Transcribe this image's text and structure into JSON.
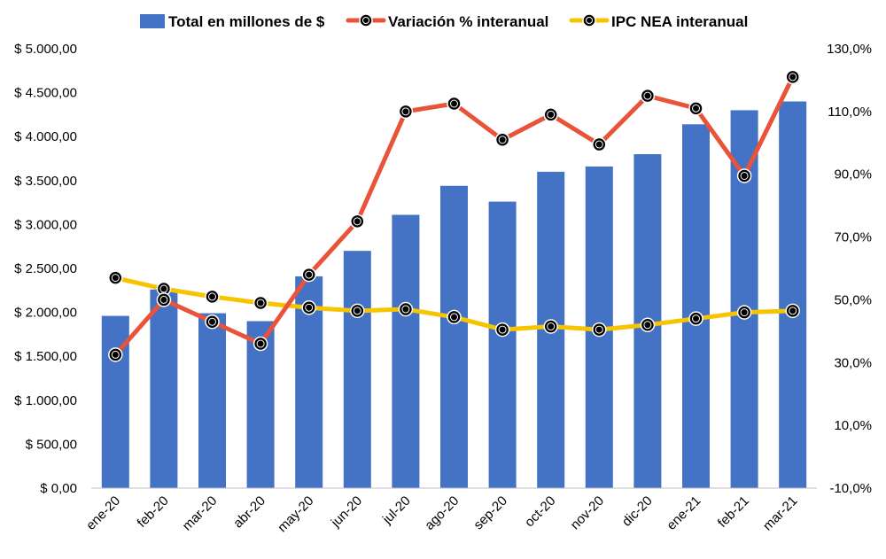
{
  "chart_data": {
    "type": "bar",
    "title": "",
    "categories": [
      "ene-20",
      "feb-20",
      "mar-20",
      "abr-20",
      "may-20",
      "jun-20",
      "jul-20",
      "ago-20",
      "sep-20",
      "oct-20",
      "nov-20",
      "dic-20",
      "ene-21",
      "feb-21",
      "mar-21"
    ],
    "legend_position": "top",
    "grid": false,
    "y_left": {
      "ylim": [
        0,
        5000
      ],
      "ticks": [
        0,
        500,
        1000,
        1500,
        2000,
        2500,
        3000,
        3500,
        4000,
        4500,
        5000
      ],
      "tick_labels": [
        "$ 0,00",
        "$ 500,00",
        "$ 1.000,00",
        "$ 1.500,00",
        "$ 2.000,00",
        "$ 2.500,00",
        "$ 3.000,00",
        "$ 3.500,00",
        "$ 4.000,00",
        "$ 4.500,00",
        "$ 5.000,00"
      ]
    },
    "y_right": {
      "ylim": [
        -10,
        130
      ],
      "ticks": [
        -10,
        10,
        30,
        50,
        70,
        90,
        110,
        130
      ],
      "tick_labels": [
        "-10,0%",
        "10,0%",
        "30,0%",
        "50,0%",
        "70,0%",
        "90,0%",
        "110,0%",
        "130,0%"
      ]
    },
    "series": [
      {
        "name": "Total en millones de $",
        "type": "bar",
        "axis": "left",
        "color": "#4472C4",
        "values": [
          1960,
          2260,
          1990,
          1900,
          2410,
          2700,
          3110,
          3440,
          3260,
          3600,
          3660,
          3800,
          4140,
          4300,
          4400
        ]
      },
      {
        "name": "Variación % interanual",
        "type": "line",
        "axis": "right",
        "color": "#E8533A",
        "marker": "circle",
        "values": [
          32.5,
          50.0,
          43.0,
          36.0,
          58.0,
          75.0,
          110.0,
          112.5,
          101.0,
          109.0,
          99.5,
          115.0,
          111.0,
          89.5,
          121.0
        ]
      },
      {
        "name": "IPC NEA interanual",
        "type": "line",
        "axis": "right",
        "color": "#F6C400",
        "marker": "circle",
        "values": [
          57.0,
          53.5,
          51.0,
          49.0,
          47.5,
          46.5,
          47.0,
          44.5,
          40.5,
          41.5,
          40.5,
          42.0,
          44.0,
          46.0,
          46.5
        ]
      }
    ]
  }
}
